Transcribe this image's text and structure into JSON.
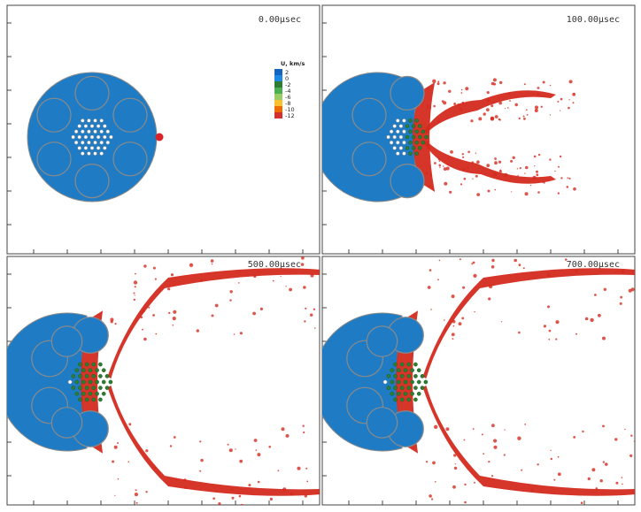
{
  "panels": [
    {
      "time_label": "0.00µsec",
      "stage": 0
    },
    {
      "time_label": "100.00µsec",
      "stage": 1
    },
    {
      "time_label": "500.00µsec",
      "stage": 2
    },
    {
      "time_label": "700.00µsec",
      "stage": 3
    }
  ],
  "legend": {
    "title": "U, km/s",
    "entries": [
      {
        "label": "2",
        "color": "#1565c0"
      },
      {
        "label": "0",
        "color": "#1e88e5"
      },
      {
        "label": "-2",
        "color": "#2e7d32"
      },
      {
        "label": "-4",
        "color": "#4caf50"
      },
      {
        "label": "-6",
        "color": "#9ccc65"
      },
      {
        "label": "-8",
        "color": "#fbc02d"
      },
      {
        "label": "-10",
        "color": "#ef6c00"
      },
      {
        "label": "-12",
        "color": "#d32f2f"
      }
    ]
  },
  "colors": {
    "body": "#1f7cc4",
    "outline": "#8a8a8a",
    "debris": "#d42a1e",
    "compressed": "#2e7d32",
    "projectile": "#d8232a",
    "frame": "#444444"
  }
}
